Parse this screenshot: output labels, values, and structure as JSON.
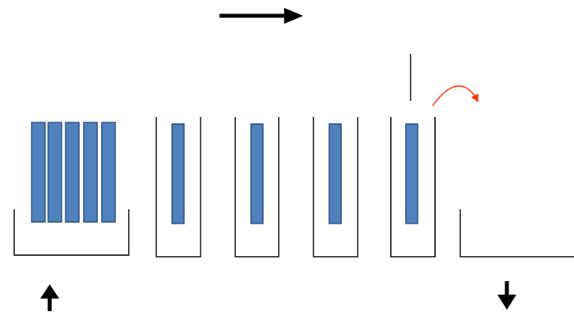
{
  "diagram": {
    "colors": {
      "background": "#ffffff",
      "stroke": "#000000",
      "bar_fill": "#4f81bd",
      "bar_stroke": "#2a4f80",
      "red_arrow": "#ff3300"
    },
    "icons": {
      "top_arrow": "arrow-right-icon",
      "bottom_left_arrow": "arrow-up-icon",
      "bottom_right_arrow": "arrow-down-icon",
      "transfer_arrow": "curved-arrow-icon"
    },
    "stack_bar_count": 5,
    "slot_count": 4
  }
}
